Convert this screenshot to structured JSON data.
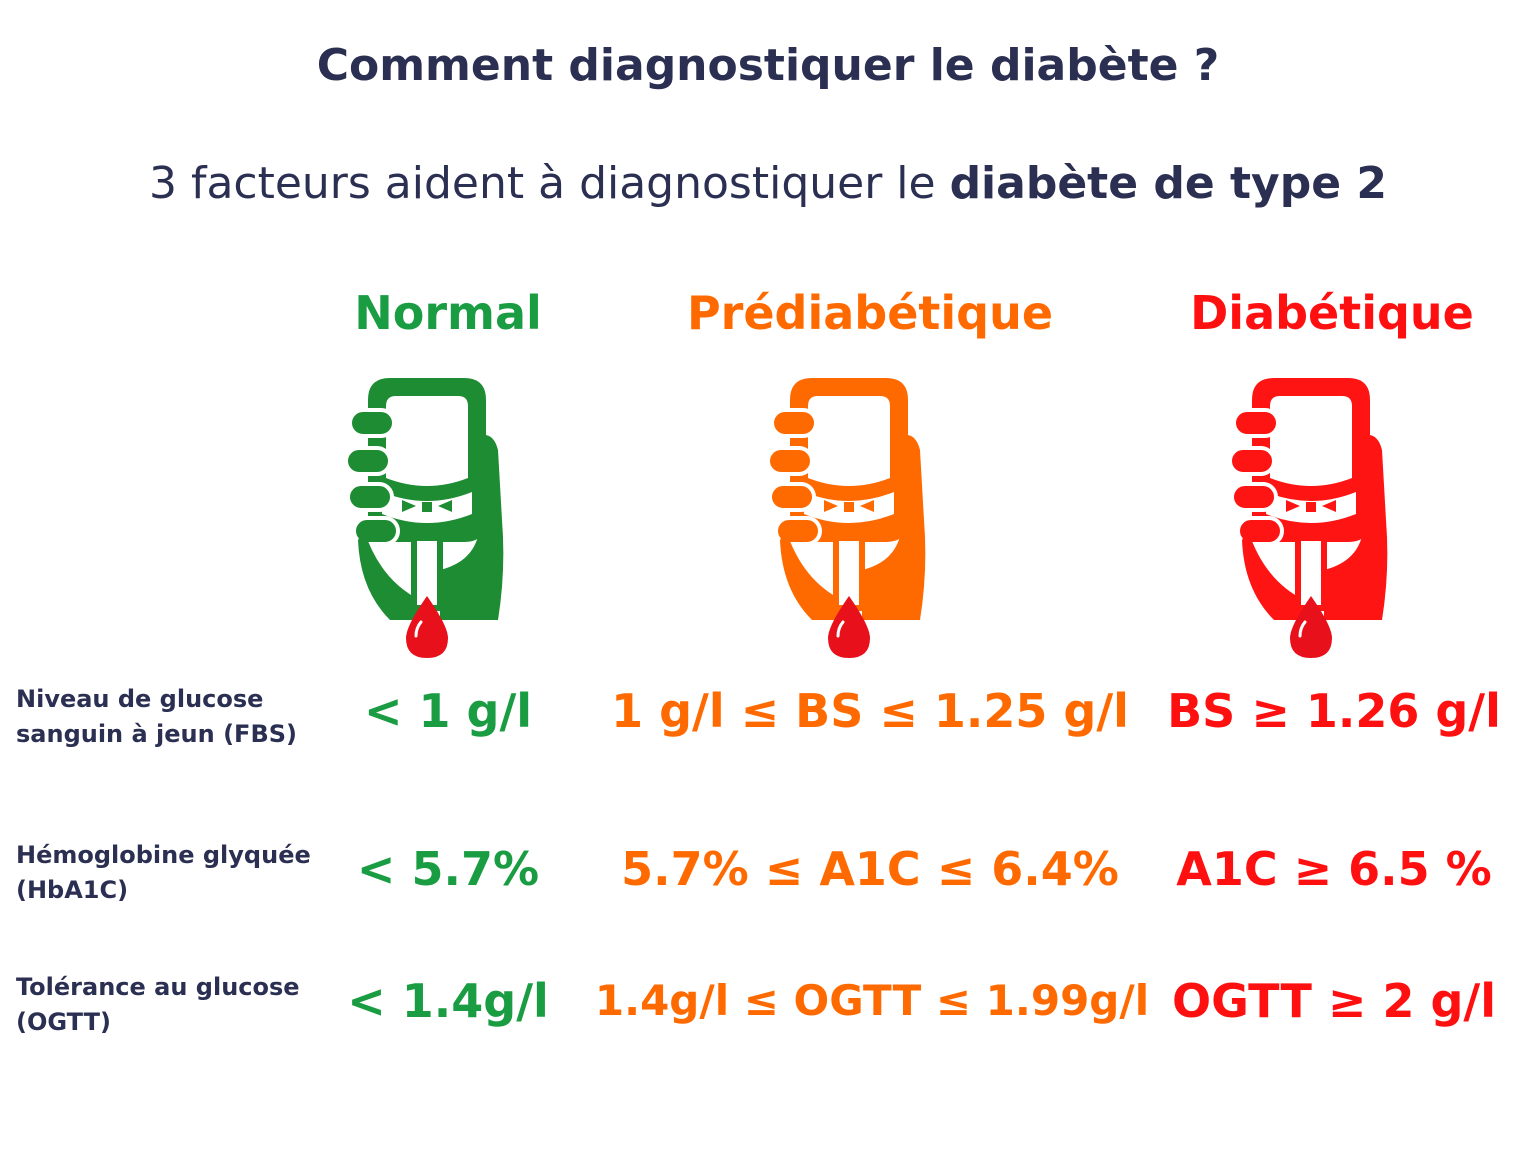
{
  "title": "Comment diagnostiquer le diabète ?",
  "subtitle": {
    "prefix": "3 facteurs aident à diagnostiquer le ",
    "emphasis": "diabète de type 2"
  },
  "colors": {
    "text_dark": "#2b2f52",
    "normal": "#1a9c42",
    "prediabetic": "#ff6a00",
    "diabetic": "#ff1010",
    "meter_normal": "#1e8c32",
    "meter_prediabetic": "#ff6a00",
    "meter_diabetic": "#ff1414",
    "blood_drop": "#e8101a"
  },
  "columns": [
    {
      "label": "Normal",
      "icon": "glucose-meter-icon"
    },
    {
      "label": "Prédiabétique",
      "icon": "glucose-meter-icon"
    },
    {
      "label": "Diabétique",
      "icon": "glucose-meter-icon"
    }
  ],
  "rows": [
    {
      "label_line1": "Niveau de glucose",
      "label_line2": "sanguin à jeun (FBS)",
      "values": [
        "< 1 g/l",
        "1 g/l ≤ BS ≤ 1.25 g/l",
        "BS ≥ 1.26 g/l"
      ]
    },
    {
      "label_line1": "Hémoglobine glyquée",
      "label_line2": "(HbA1C)",
      "values": [
        "< 5.7%",
        "5.7% ≤ A1C ≤ 6.4%",
        "A1C ≥ 6.5 %"
      ]
    },
    {
      "label_line1": "Tolérance au glucose",
      "label_line2": "(OGTT)",
      "values": [
        "< 1.4g/l",
        "1.4g/l ≤ OGTT ≤ 1.99g/l",
        "OGTT ≥ 2 g/l"
      ]
    }
  ]
}
